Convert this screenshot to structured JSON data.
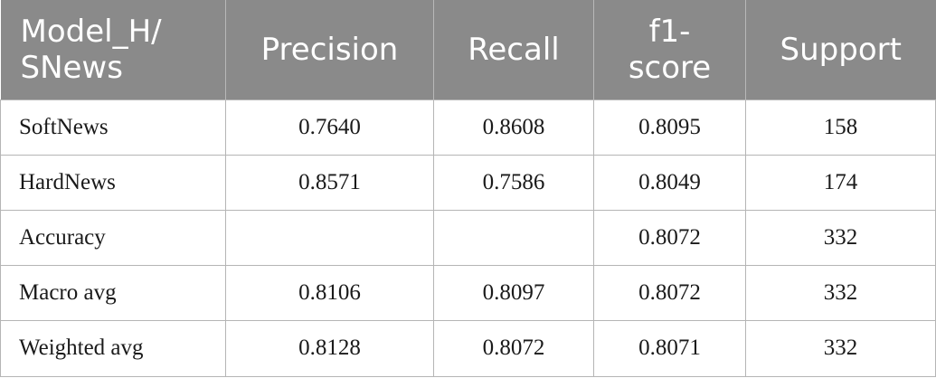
{
  "table": {
    "headers": [
      "Model_H/ SNews",
      "Precision",
      "Recall",
      "f1-score",
      "Support"
    ],
    "rows": [
      [
        "SoftNews",
        "0.7640",
        "0.8608",
        "0.8095",
        "158"
      ],
      [
        "HardNews",
        "0.8571",
        "0.7586",
        "0.8049",
        "174"
      ],
      [
        "Accuracy",
        "",
        "",
        "0.8072",
        "332"
      ],
      [
        "Macro avg",
        "0.8106",
        "0.8097",
        "0.8072",
        "332"
      ],
      [
        "Weighted avg",
        "0.8128",
        "0.8072",
        "0.8071",
        "332"
      ]
    ]
  }
}
